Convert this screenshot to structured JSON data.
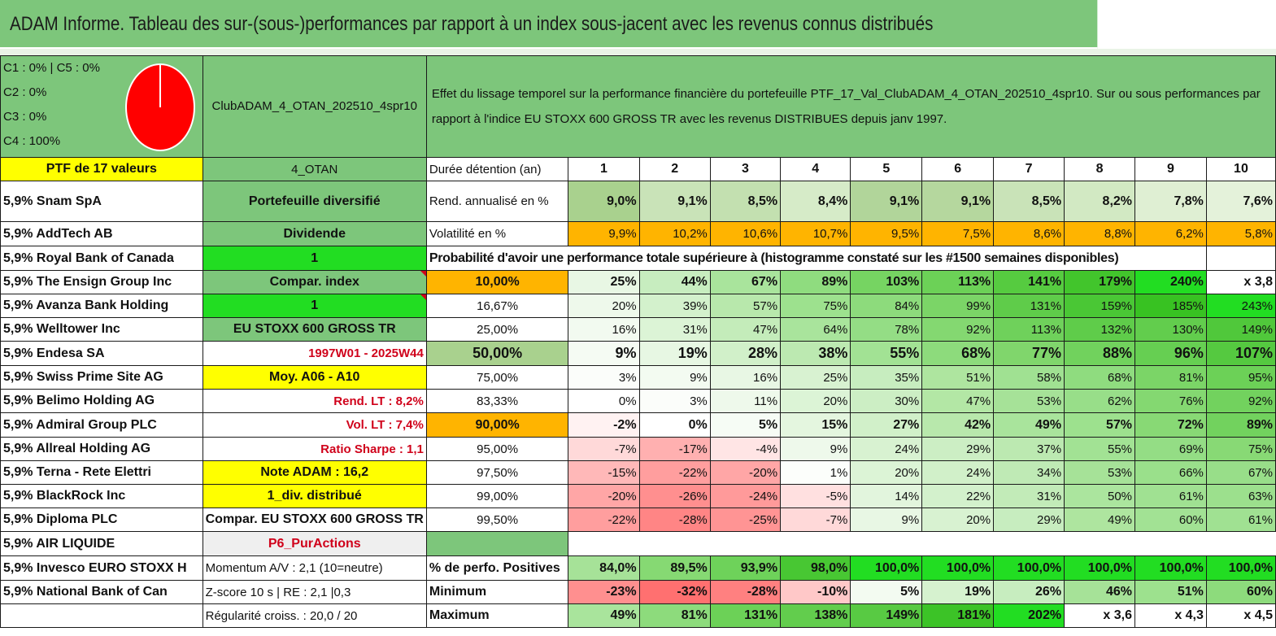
{
  "title": "ADAM Informe. Tableau des sur-(sous-)performances par rapport à un index sous-jacent avec les revenus connus distribués",
  "legend": [
    "C1 : 0% | C5 : 0%",
    "C2 : 0%",
    "C3 : 0%",
    "C4 : 100%"
  ],
  "pie": {
    "color": "#ff0000",
    "slices": [
      {
        "label": "C4",
        "value": 100
      }
    ]
  },
  "portfolio_id": "ClubADAM_4_OTAN_202510_4spr10",
  "description": "Effet du lissage temporel sur la performance financière du portefeuille PTF_17_Val_ClubADAM_4_OTAN_202510_4spr10. Sur ou sous performances par rapport à l'indice EU STOXX 600 GROSS TR avec les revenus DISTRIBUES depuis janv 1997.",
  "ptf_label": "PTF de 17 valeurs",
  "ptf_code": "4_OTAN",
  "duration_label": "Durée détention (an)",
  "years": [
    "1",
    "2",
    "3",
    "4",
    "5",
    "6",
    "7",
    "8",
    "9",
    "10"
  ],
  "holdings": [
    "5,9% Snam SpA",
    "5,9% AddTech AB",
    "5,9% Royal Bank of Canada",
    "5,9% The Ensign Group Inc",
    "5,9% Avanza Bank Holding",
    "5,9% Welltower Inc",
    "5,9% Endesa SA",
    "5,9% Swiss Prime Site AG",
    "5,9% Belimo Holding AG",
    "5,9% Admiral Group PLC",
    "5,9% Allreal Holding AG",
    "5,9% Terna - Rete Elettri",
    "5,9% BlackRock Inc",
    "5,9% Diploma PLC",
    "5,9% AIR LIQUIDE",
    "5,9% Invesco EURO STOXX H",
    "5,9% National Bank of Can",
    ""
  ],
  "info": [
    "Portefeuille diversifié",
    "Dividende",
    "1",
    "Compar. index",
    "1",
    "EU STOXX 600 GROSS TR",
    "1997W01 - 2025W44",
    "Moy. A06 - A10",
    "Rend. LT : 8,2%",
    "Vol. LT : 7,4%",
    "Ratio Sharpe : 1,1",
    "Note ADAM : 16,2",
    "1_div. distribué",
    "Compar. EU STOXX 600 GROSS TR",
    "P6_PurActions",
    "Momentum A/V : 2,1 (10=neutre)",
    "Z-score 10 s | RE : 2,1 |0,3",
    "Régularité croiss. : 20,0 / 20"
  ],
  "rendement": {
    "label": "Rend. annualisé en %",
    "values": [
      "9,0%",
      "9,1%",
      "8,5%",
      "8,4%",
      "9,1%",
      "9,1%",
      "8,5%",
      "8,2%",
      "7,8%",
      "7,6%"
    ]
  },
  "volatilite": {
    "label": "Volatilité en %",
    "values": [
      "9,9%",
      "10,2%",
      "10,6%",
      "10,7%",
      "9,5%",
      "7,5%",
      "8,6%",
      "8,8%",
      "6,2%",
      "5,8%"
    ]
  },
  "probability_header": "Probabilité d'avoir une performance totale supérieure à (histogramme constaté sur les #1500 semaines disponibles)",
  "probabilities": [
    {
      "p": "10,00%",
      "values": [
        "25%",
        "44%",
        "67%",
        "89%",
        "103%",
        "113%",
        "141%",
        "179%",
        "240%",
        "x 3,8"
      ]
    },
    {
      "p": "16,67%",
      "values": [
        "20%",
        "39%",
        "57%",
        "75%",
        "84%",
        "99%",
        "131%",
        "159%",
        "185%",
        "243%"
      ]
    },
    {
      "p": "25,00%",
      "values": [
        "16%",
        "31%",
        "47%",
        "64%",
        "78%",
        "92%",
        "113%",
        "132%",
        "130%",
        "149%"
      ]
    },
    {
      "p": "50,00%",
      "values": [
        "9%",
        "19%",
        "28%",
        "38%",
        "55%",
        "68%",
        "77%",
        "88%",
        "96%",
        "107%"
      ]
    },
    {
      "p": "75,00%",
      "values": [
        "3%",
        "9%",
        "16%",
        "25%",
        "35%",
        "51%",
        "58%",
        "68%",
        "81%",
        "95%"
      ]
    },
    {
      "p": "83,33%",
      "values": [
        "0%",
        "3%",
        "11%",
        "20%",
        "30%",
        "47%",
        "53%",
        "62%",
        "76%",
        "92%"
      ]
    },
    {
      "p": "90,00%",
      "values": [
        "-2%",
        "0%",
        "5%",
        "15%",
        "27%",
        "42%",
        "49%",
        "57%",
        "72%",
        "89%"
      ]
    },
    {
      "p": "95,00%",
      "values": [
        "-7%",
        "-17%",
        "-4%",
        "9%",
        "24%",
        "29%",
        "37%",
        "55%",
        "69%",
        "75%"
      ]
    },
    {
      "p": "97,50%",
      "values": [
        "-15%",
        "-22%",
        "-20%",
        "1%",
        "20%",
        "24%",
        "34%",
        "53%",
        "66%",
        "67%"
      ]
    },
    {
      "p": "99,00%",
      "values": [
        "-20%",
        "-26%",
        "-24%",
        "-5%",
        "14%",
        "22%",
        "31%",
        "50%",
        "61%",
        "63%"
      ]
    },
    {
      "p": "99,50%",
      "values": [
        "-22%",
        "-28%",
        "-25%",
        "-7%",
        "9%",
        "20%",
        "29%",
        "49%",
        "60%",
        "61%"
      ]
    }
  ],
  "positives": {
    "label": "% de perfo. Positives",
    "values": [
      "84,0%",
      "89,5%",
      "93,9%",
      "98,0%",
      "100,0%",
      "100,0%",
      "100,0%",
      "100,0%",
      "100,0%",
      "100,0%"
    ]
  },
  "minimum": {
    "label": "Minimum",
    "values": [
      "-23%",
      "-32%",
      "-28%",
      "-10%",
      "5%",
      "19%",
      "26%",
      "46%",
      "51%",
      "60%"
    ]
  },
  "maximum": {
    "label": "Maximum",
    "values": [
      "49%",
      "81%",
      "131%",
      "138%",
      "149%",
      "181%",
      "202%",
      "x 3,6",
      "x 4,3",
      "x 4,5"
    ]
  },
  "colors": {
    "header_green": "#7dc67b",
    "bright_green": "#22dd22",
    "yellow": "#ffff00",
    "orange": "#ffb400",
    "light_green": "#a9d18e",
    "red_text": "#d0021b"
  },
  "cell_colors": {
    "rendement": [
      "#a9d18e",
      "#c9e3b8",
      "#c3e0b0",
      "#d6ebc8",
      "#b1d59a",
      "#b5d79e",
      "#c9e3b8",
      "#d2e9c3",
      "#dfefd3",
      "#e4f2da"
    ],
    "volatilite": [
      "#ffb400",
      "#ffb400",
      "#ffb400",
      "#ffb400",
      "#ffb400",
      "#ffb400",
      "#ffb400",
      "#ffb400",
      "#ffb400",
      "#ffb400"
    ],
    "probabilities": [
      [
        "#e8f7e4",
        "#c7edbf",
        "#a9e49c",
        "#8fdc7f",
        "#76d462",
        "#6cd157",
        "#56cb40",
        "#42c52c",
        "#22dd22",
        "#ffffff"
      ],
      [
        "#eef9eb",
        "#d3f1cc",
        "#b8e8ac",
        "#9de18e",
        "#8ddb7c",
        "#7bd567",
        "#5fcc4a",
        "#4ac735",
        "#38c222",
        "#22dd22"
      ],
      [
        "#f2faf0",
        "#dcf4d6",
        "#c4ecba",
        "#a9e49c",
        "#94dd85",
        "#84d871",
        "#6fd15b",
        "#5fcc4a",
        "#62cd4d",
        "#50c83b"
      ],
      [
        "#f5fbf3",
        "#e7f7e3",
        "#d1f0c9",
        "#bce9b1",
        "#a2e294",
        "#8ddb7c",
        "#80d66c",
        "#71d25d",
        "#66cf52",
        "#55c940"
      ],
      [
        "#fbfdfa",
        "#f3fbf1",
        "#e8f7e4",
        "#d8f2d1",
        "#c7edbf",
        "#aee59f",
        "#a0e192",
        "#8fdc7f",
        "#7bd567",
        "#6cd157"
      ],
      [
        "#ffffff",
        "#fbfdfa",
        "#eef9eb",
        "#dcf4d6",
        "#cceec4",
        "#b3e7a5",
        "#a6e298",
        "#98de89",
        "#84d871",
        "#72d25e"
      ],
      [
        "#fff2f2",
        "#ffffff",
        "#f6fcf5",
        "#e4f6df",
        "#d1f0c9",
        "#b8e8ac",
        "#a9e49c",
        "#9de18e",
        "#88d975",
        "#72d25e"
      ],
      [
        "#ffd9d9",
        "#ffb0b0",
        "#ffe5e5",
        "#eef9eb",
        "#d8f2d1",
        "#cceec4",
        "#bce9b1",
        "#a2e294",
        "#94dd85",
        "#88d975"
      ],
      [
        "#ffb8b8",
        "#ff9e9e",
        "#ffa6a6",
        "#fcfefb",
        "#dcf4d6",
        "#d1f0c9",
        "#bfeab5",
        "#a6e298",
        "#9ae08b",
        "#98de89"
      ],
      [
        "#ffa6a6",
        "#ff8f8f",
        "#ff9a9a",
        "#ffe0e0",
        "#e2f5dd",
        "#d3f1cc",
        "#c2ebb8",
        "#abe59e",
        "#a0e192",
        "#9ce08d"
      ],
      [
        "#ff9e9e",
        "#ff8585",
        "#ff9494",
        "#ffd9d9",
        "#e8f7e4",
        "#d8f2d1",
        "#c7edbf",
        "#aee59f",
        "#a2e294",
        "#a0e192"
      ]
    ],
    "positives": [
      "#a6e298",
      "#86d973",
      "#6ed25a",
      "#48c733",
      "#22dd22",
      "#22dd22",
      "#22dd22",
      "#22dd22",
      "#22dd22",
      "#22dd22"
    ],
    "minimum": [
      "#ff8f8f",
      "#ff7070",
      "#ff8080",
      "#ffc8c8",
      "#f3fbf1",
      "#d6f2cf",
      "#c7edbf",
      "#a6e298",
      "#9de18e",
      "#8ddb7c"
    ],
    "maximum": [
      "#a9e49c",
      "#8ddb7c",
      "#6cd157",
      "#62cd4d",
      "#58ca43",
      "#3cc327",
      "#22dd22",
      "#ffffff",
      "#ffffff",
      "#ffffff"
    ]
  },
  "info_styles": [
    "g",
    "g",
    "gb",
    "g",
    "gb",
    "g",
    "red",
    "y",
    "red",
    "red",
    "red",
    "y",
    "y",
    "",
    "grey",
    "",
    "",
    ""
  ]
}
